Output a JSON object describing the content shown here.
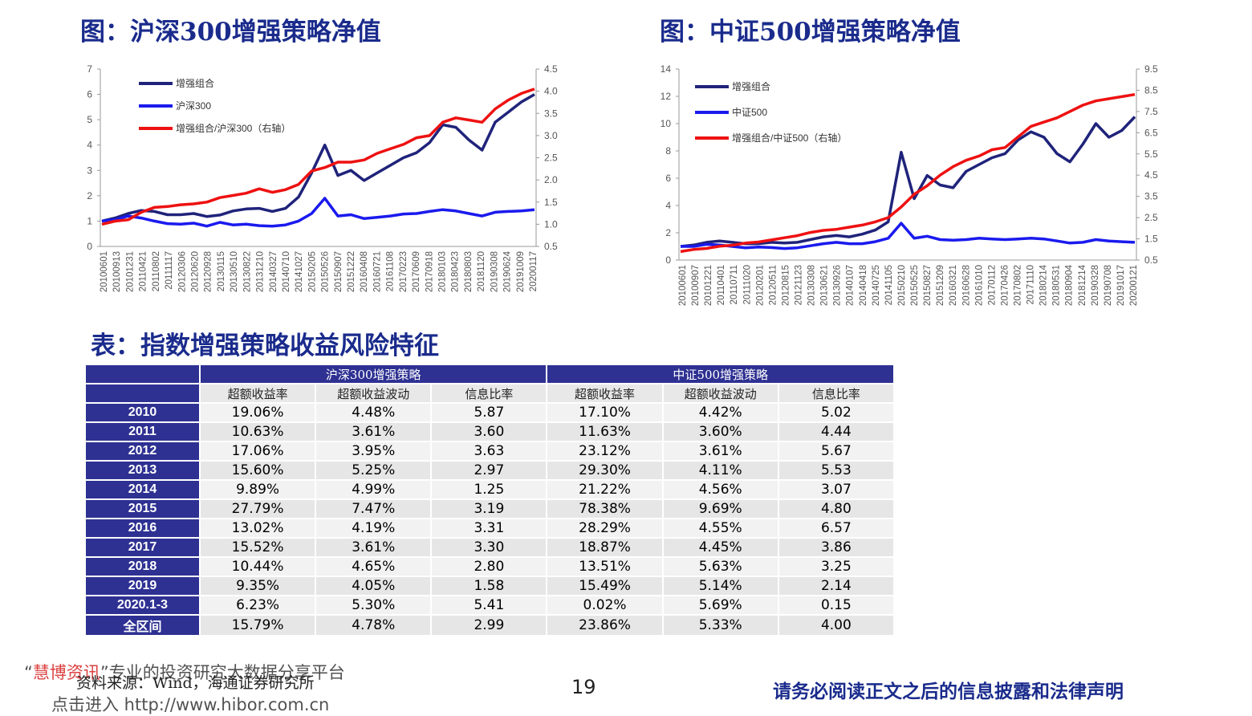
{
  "headings": {
    "chart1": "图：沪深300增强策略净值",
    "chart2": "图：中证500增强策略净值",
    "table": "表：指数增强策略收益风险特征"
  },
  "chart_data": [
    {
      "type": "line",
      "title": "图：沪深300增强策略净值",
      "left_axis": {
        "min": 0,
        "max": 7,
        "ticks": [
          "0",
          "1",
          "2",
          "3",
          "4",
          "5",
          "6",
          "7"
        ]
      },
      "right_axis": {
        "min": 0.5,
        "max": 4.5,
        "ticks": [
          "0.5",
          "1.0",
          "1.5",
          "2.0",
          "2.5",
          "3.0",
          "3.5",
          "4.0",
          "4.5"
        ]
      },
      "x_tick_labels": [
        "20100601",
        "20100913",
        "20101231",
        "20110421",
        "20110802",
        "20111117",
        "20120306",
        "20120620",
        "20120928",
        "20130115",
        "20130510",
        "20130822",
        "20131210",
        "20140327",
        "20140710",
        "20141027",
        "20150205",
        "20150526",
        "20150907",
        "20151222",
        "20160408",
        "20160721",
        "20161108",
        "20170223",
        "20170609",
        "20170918",
        "20180103",
        "20180423",
        "20180803",
        "20181120",
        "20190308",
        "20190624",
        "20191009",
        "20200117"
      ],
      "legend_placement": "top-left",
      "grid": false,
      "series": [
        {
          "name": "增强组合",
          "axis": "left",
          "color": "#1f237a",
          "values": [
            1.0,
            1.12,
            1.3,
            1.42,
            1.38,
            1.25,
            1.25,
            1.3,
            1.18,
            1.24,
            1.4,
            1.48,
            1.5,
            1.38,
            1.5,
            1.95,
            2.9,
            4.0,
            2.8,
            3.0,
            2.6,
            2.9,
            3.2,
            3.5,
            3.7,
            4.1,
            4.8,
            4.7,
            4.2,
            3.8,
            4.9,
            5.3,
            5.7,
            6.0
          ]
        },
        {
          "name": "沪深300",
          "axis": "left",
          "color": "#1a1aee",
          "values": [
            1.0,
            1.05,
            1.2,
            1.12,
            1.0,
            0.9,
            0.88,
            0.92,
            0.8,
            0.95,
            0.85,
            0.88,
            0.82,
            0.8,
            0.85,
            1.0,
            1.3,
            1.9,
            1.2,
            1.25,
            1.1,
            1.15,
            1.2,
            1.28,
            1.3,
            1.38,
            1.45,
            1.4,
            1.3,
            1.2,
            1.35,
            1.38,
            1.4,
            1.45
          ]
        },
        {
          "name": "增强组合/沪深300（右轴）",
          "axis": "right",
          "color": "#ee1111",
          "values": [
            1.0,
            1.07,
            1.1,
            1.27,
            1.38,
            1.4,
            1.44,
            1.46,
            1.5,
            1.6,
            1.65,
            1.7,
            1.8,
            1.72,
            1.78,
            1.9,
            2.2,
            2.28,
            2.4,
            2.4,
            2.45,
            2.6,
            2.7,
            2.8,
            2.95,
            3.0,
            3.3,
            3.4,
            3.35,
            3.3,
            3.6,
            3.8,
            3.95,
            4.05
          ]
        }
      ]
    },
    {
      "type": "line",
      "title": "图：中证500增强策略净值",
      "left_axis": {
        "min": 0,
        "max": 14,
        "ticks": [
          "0",
          "2",
          "4",
          "6",
          "8",
          "10",
          "12",
          "14"
        ]
      },
      "right_axis": {
        "min": 0.5,
        "max": 9.5,
        "ticks": [
          "0.5",
          "1.5",
          "2.5",
          "3.5",
          "4.5",
          "5.5",
          "6.5",
          "7.5",
          "8.5",
          "9.5"
        ]
      },
      "x_tick_labels": [
        "20100601",
        "20100907",
        "20101221",
        "20110401",
        "20110711",
        "20111020",
        "20120201",
        "20120511",
        "20120815",
        "20121123",
        "20130308",
        "20130621",
        "20130926",
        "20140107",
        "20140418",
        "20140725",
        "20141105",
        "20150210",
        "20150525",
        "20150827",
        "20151209",
        "20160321",
        "20160628",
        "20161010",
        "20170112",
        "20170426",
        "20170802",
        "20171110",
        "20180214",
        "20180531",
        "20180904",
        "20181214",
        "20190328",
        "20190708",
        "20191017",
        "20200121"
      ],
      "legend_placement": "top-left",
      "grid": false,
      "series": [
        {
          "name": "增强组合",
          "axis": "left",
          "color": "#1f237a",
          "values": [
            1.0,
            1.1,
            1.3,
            1.4,
            1.3,
            1.2,
            1.2,
            1.3,
            1.25,
            1.3,
            1.5,
            1.7,
            1.8,
            1.7,
            1.9,
            2.2,
            2.8,
            7.9,
            4.5,
            6.2,
            5.5,
            5.3,
            6.5,
            7.0,
            7.5,
            7.8,
            8.8,
            9.4,
            9.0,
            7.8,
            7.2,
            8.5,
            10.0,
            9.0,
            9.5,
            10.5
          ]
        },
        {
          "name": "中证500",
          "axis": "left",
          "color": "#1a1aee",
          "values": [
            1.0,
            1.0,
            1.15,
            1.1,
            1.0,
            0.9,
            0.95,
            0.92,
            0.85,
            0.9,
            1.05,
            1.2,
            1.3,
            1.2,
            1.2,
            1.35,
            1.6,
            2.7,
            1.6,
            1.75,
            1.5,
            1.45,
            1.5,
            1.6,
            1.55,
            1.5,
            1.55,
            1.6,
            1.55,
            1.4,
            1.25,
            1.3,
            1.5,
            1.4,
            1.35,
            1.3
          ]
        },
        {
          "name": "增强组合/中证500（右轴）",
          "axis": "right",
          "color": "#ee1111",
          "values": [
            0.9,
            1.0,
            1.05,
            1.15,
            1.2,
            1.3,
            1.35,
            1.45,
            1.55,
            1.65,
            1.8,
            1.9,
            1.95,
            2.05,
            2.15,
            2.3,
            2.5,
            3.0,
            3.6,
            4.0,
            4.5,
            4.9,
            5.2,
            5.4,
            5.7,
            5.8,
            6.3,
            6.8,
            7.0,
            7.2,
            7.5,
            7.8,
            8.0,
            8.1,
            8.2,
            8.3
          ]
        }
      ]
    }
  ],
  "table": {
    "groups": [
      "沪深300增强策略",
      "中证500增强策略"
    ],
    "subheaders": [
      "超额收益率",
      "超额收益波动",
      "信息比率",
      "超额收益率",
      "超额收益波动",
      "信息比率"
    ],
    "rows": [
      {
        "label": "2010",
        "cells": [
          "19.06%",
          "4.48%",
          "5.87",
          "17.10%",
          "4.42%",
          "5.02"
        ]
      },
      {
        "label": "2011",
        "cells": [
          "10.63%",
          "3.61%",
          "3.60",
          "11.63%",
          "3.60%",
          "4.44"
        ]
      },
      {
        "label": "2012",
        "cells": [
          "17.06%",
          "3.95%",
          "3.63",
          "23.12%",
          "3.61%",
          "5.67"
        ]
      },
      {
        "label": "2013",
        "cells": [
          "15.60%",
          "5.25%",
          "2.97",
          "29.30%",
          "4.11%",
          "5.53"
        ]
      },
      {
        "label": "2014",
        "cells": [
          "9.89%",
          "4.99%",
          "1.25",
          "21.22%",
          "4.56%",
          "3.07"
        ]
      },
      {
        "label": "2015",
        "cells": [
          "27.79%",
          "7.47%",
          "3.19",
          "78.38%",
          "9.69%",
          "4.80"
        ]
      },
      {
        "label": "2016",
        "cells": [
          "13.02%",
          "4.19%",
          "3.31",
          "28.29%",
          "4.55%",
          "6.57"
        ]
      },
      {
        "label": "2017",
        "cells": [
          "15.52%",
          "3.61%",
          "3.30",
          "18.87%",
          "4.45%",
          "3.86"
        ]
      },
      {
        "label": "2018",
        "cells": [
          "10.44%",
          "4.65%",
          "2.80",
          "13.51%",
          "5.63%",
          "3.25"
        ]
      },
      {
        "label": "2019",
        "cells": [
          "9.35%",
          "4.05%",
          "1.58",
          "15.49%",
          "5.14%",
          "2.14"
        ]
      },
      {
        "label": "2020.1-3",
        "cells": [
          "6.23%",
          "5.30%",
          "5.41",
          "0.02%",
          "5.69%",
          "0.15"
        ]
      },
      {
        "label": "全区间",
        "cells": [
          "15.79%",
          "4.78%",
          "2.99",
          "23.86%",
          "5.33%",
          "4.00"
        ]
      }
    ]
  },
  "footer": {
    "source": "资料来源：Wind，海通证券研究所",
    "page_number": "19",
    "legal": "请务必阅读正文之后的信息披露和法律声明"
  },
  "watermark": {
    "brand": "慧博资讯",
    "quote_open": "“",
    "quote_close": "”",
    "slogan": "专业的投资研究大数据分享平台",
    "link": "点击进入 http://www.hibor.com.cn"
  },
  "colors": {
    "heading": "#1a2b8c",
    "table_header": "#2e3192",
    "series_dark": "#1f237a",
    "series_blue": "#1a1aee",
    "series_red": "#ee1111"
  }
}
